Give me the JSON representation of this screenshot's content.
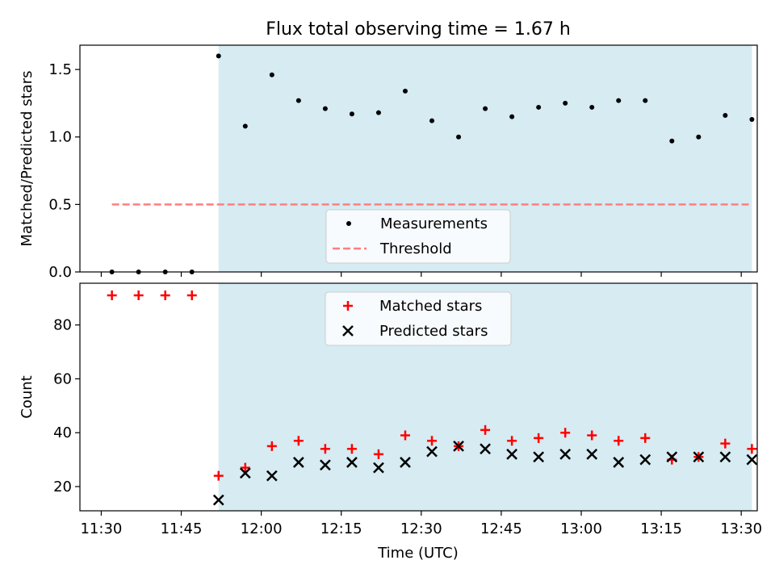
{
  "chart_data": {
    "type": "scatter",
    "title": "Flux total observing time = 1.67 h",
    "xlabel": "Time (UTC)",
    "x_ticks": [
      "11:30",
      "11:45",
      "12:00",
      "12:15",
      "12:30",
      "12:45",
      "13:00",
      "13:15",
      "13:30"
    ],
    "x_range": [
      "11:26",
      "13:33"
    ],
    "shaded_interval": [
      "11:52",
      "13:32"
    ],
    "shade_color": "#add8e6",
    "panels": [
      {
        "name": "ratio",
        "ylabel": "Matched/Predicted stars",
        "ylim": [
          0,
          1.68
        ],
        "y_ticks": [
          "0.0",
          "0.5",
          "1.0",
          "1.5"
        ],
        "legend": {
          "location": "lower center",
          "entries": [
            "Measurements",
            "Threshold"
          ]
        },
        "series": [
          {
            "name": "Measurements",
            "marker": "dot",
            "color": "#000000",
            "x": [
              "11:32",
              "11:37",
              "11:42",
              "11:47",
              "11:52",
              "11:57",
              "12:02",
              "12:07",
              "12:12",
              "12:17",
              "12:22",
              "12:27",
              "12:32",
              "12:37",
              "12:42",
              "12:47",
              "12:52",
              "12:57",
              "13:02",
              "13:07",
              "13:12",
              "13:17",
              "13:22",
              "13:27",
              "13:32"
            ],
            "y": [
              0.0,
              0.0,
              0.0,
              0.0,
              1.6,
              1.08,
              1.46,
              1.27,
              1.21,
              1.17,
              1.18,
              1.34,
              1.12,
              1.0,
              1.21,
              1.15,
              1.22,
              1.25,
              1.22,
              1.27,
              1.27,
              0.97,
              1.0,
              1.16,
              1.13
            ]
          },
          {
            "name": "Threshold",
            "line": "dashed",
            "color": "#ff7f7f",
            "x": [
              "11:32",
              "13:32"
            ],
            "y": [
              0.5,
              0.5
            ]
          }
        ]
      },
      {
        "name": "counts",
        "ylabel": "Count",
        "ylim": [
          11,
          95.5
        ],
        "y_ticks": [
          "20",
          "40",
          "60",
          "80"
        ],
        "legend": {
          "location": "upper center",
          "entries": [
            "Matched stars",
            "Predicted stars"
          ]
        },
        "series": [
          {
            "name": "Matched stars",
            "marker": "plus",
            "color": "#ff0000",
            "x": [
              "11:32",
              "11:37",
              "11:42",
              "11:47",
              "11:52",
              "11:57",
              "12:02",
              "12:07",
              "12:12",
              "12:17",
              "12:22",
              "12:27",
              "12:32",
              "12:37",
              "12:42",
              "12:47",
              "12:52",
              "12:57",
              "13:02",
              "13:07",
              "13:12",
              "13:17",
              "13:22",
              "13:27",
              "13:32"
            ],
            "y": [
              91,
              91,
              91,
              91,
              24,
              27,
              35,
              37,
              34,
              34,
              32,
              39,
              37,
              35,
              41,
              37,
              38,
              40,
              39,
              37,
              38,
              30,
              31,
              36,
              34
            ]
          },
          {
            "name": "Predicted stars",
            "marker": "x",
            "color": "#000000",
            "x": [
              "11:52",
              "11:57",
              "12:02",
              "12:07",
              "12:12",
              "12:17",
              "12:22",
              "12:27",
              "12:32",
              "12:37",
              "12:42",
              "12:47",
              "12:52",
              "12:57",
              "13:02",
              "13:07",
              "13:12",
              "13:17",
              "13:22",
              "13:27",
              "13:32"
            ],
            "y": [
              15,
              25,
              24,
              29,
              28,
              29,
              27,
              29,
              33,
              35,
              34,
              32,
              31,
              32,
              32,
              29,
              30,
              31,
              31,
              31,
              30
            ]
          }
        ]
      }
    ]
  }
}
